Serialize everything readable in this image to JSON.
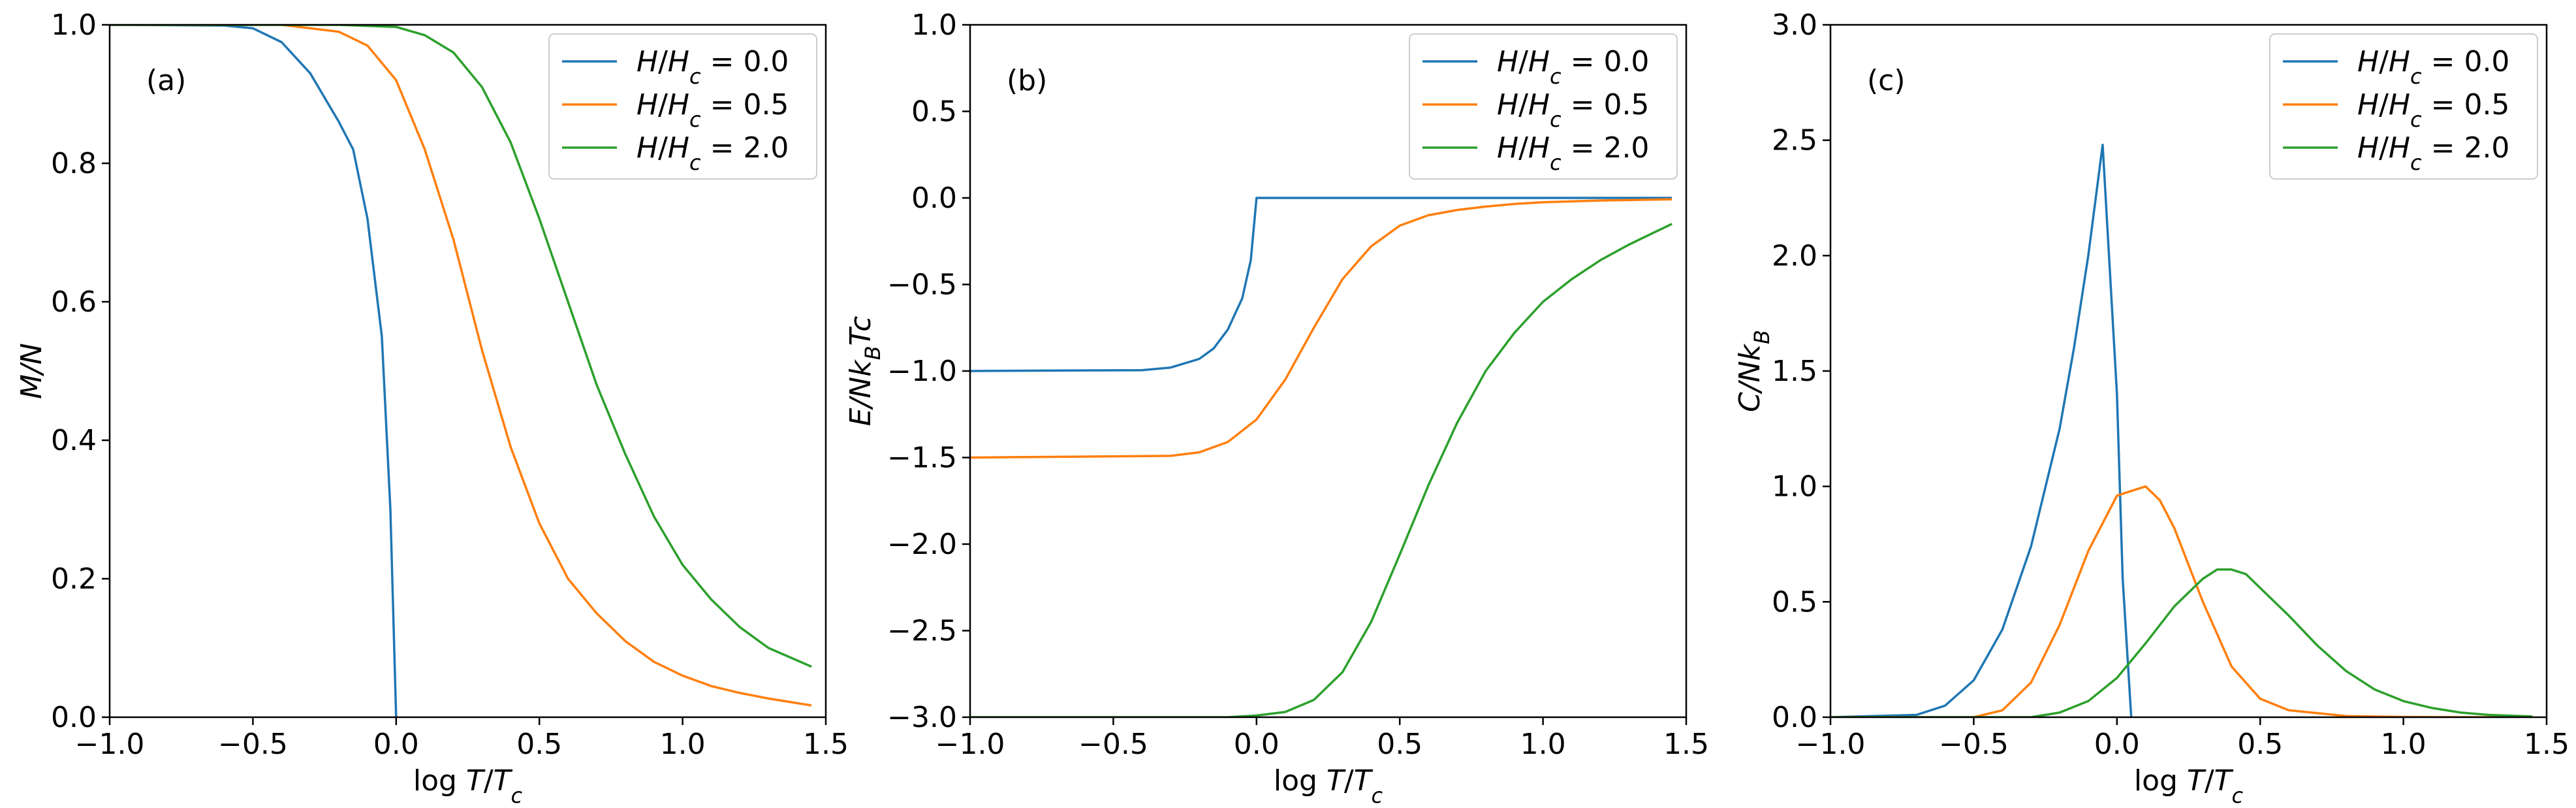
{
  "figure": {
    "panels": [
      "(a)",
      "(b)",
      "(c)"
    ]
  },
  "colors": {
    "series0": "#1f77b4",
    "series1": "#ff7f0e",
    "series2": "#2ca02c",
    "axes": "#000000",
    "background": "#ffffff"
  },
  "chart_data": [
    {
      "type": "line",
      "panel_label": "(a)",
      "xlabel": "log T/T_c",
      "ylabel": "M/N",
      "xlim": [
        -1.0,
        1.5
      ],
      "ylim": [
        0.0,
        1.0
      ],
      "xticks": [
        -1.0,
        -0.5,
        0.0,
        0.5,
        1.0,
        1.5
      ],
      "xtick_labels": [
        "−1.0",
        "−0.5",
        "0.0",
        "0.5",
        "1.0",
        "1.5"
      ],
      "yticks": [
        0.0,
        0.2,
        0.4,
        0.6,
        0.8,
        1.0
      ],
      "ytick_labels": [
        "0.0",
        "0.2",
        "0.4",
        "0.6",
        "0.8",
        "1.0"
      ],
      "grid": false,
      "legend_position": "top-right",
      "series": [
        {
          "name": "H/H_c = 0.0",
          "x": [
            -1.0,
            -0.6,
            -0.5,
            -0.4,
            -0.3,
            -0.2,
            -0.15,
            -0.1,
            -0.05,
            -0.02,
            0.0
          ],
          "y": [
            1.0,
            0.999,
            0.995,
            0.975,
            0.93,
            0.86,
            0.82,
            0.72,
            0.55,
            0.3,
            0.0
          ]
        },
        {
          "name": "H/H_c = 0.5",
          "x": [
            -1.0,
            -0.4,
            -0.2,
            -0.1,
            0.0,
            0.1,
            0.2,
            0.3,
            0.4,
            0.5,
            0.6,
            0.7,
            0.8,
            0.9,
            1.0,
            1.1,
            1.2,
            1.3,
            1.45
          ],
          "y": [
            1.0,
            1.0,
            0.99,
            0.97,
            0.92,
            0.82,
            0.69,
            0.53,
            0.39,
            0.28,
            0.2,
            0.15,
            0.11,
            0.08,
            0.06,
            0.045,
            0.035,
            0.027,
            0.017
          ]
        },
        {
          "name": "H/H_c = 2.0",
          "x": [
            -1.0,
            -0.2,
            0.0,
            0.1,
            0.2,
            0.3,
            0.4,
            0.5,
            0.6,
            0.7,
            0.8,
            0.9,
            1.0,
            1.1,
            1.2,
            1.3,
            1.45
          ],
          "y": [
            1.0,
            1.0,
            0.997,
            0.985,
            0.96,
            0.91,
            0.83,
            0.72,
            0.6,
            0.48,
            0.38,
            0.29,
            0.22,
            0.17,
            0.13,
            0.1,
            0.073
          ]
        }
      ]
    },
    {
      "type": "line",
      "panel_label": "(b)",
      "xlabel": "log T/T_c",
      "ylabel": "E/Nk_BTc",
      "xlim": [
        -1.0,
        1.5
      ],
      "ylim": [
        -3.0,
        1.0
      ],
      "xticks": [
        -1.0,
        -0.5,
        0.0,
        0.5,
        1.0,
        1.5
      ],
      "xtick_labels": [
        "−1.0",
        "−0.5",
        "0.0",
        "0.5",
        "1.0",
        "1.5"
      ],
      "yticks": [
        -3.0,
        -2.5,
        -2.0,
        -1.5,
        -1.0,
        -0.5,
        0.0,
        0.5,
        1.0
      ],
      "ytick_labels": [
        "−3.0",
        "−2.5",
        "−2.0",
        "−1.5",
        "−1.0",
        "−0.5",
        "0.0",
        "0.5",
        "1.0"
      ],
      "grid": false,
      "legend_position": "top-right",
      "series": [
        {
          "name": "H/H_c = 0.0",
          "x": [
            -1.0,
            -0.4,
            -0.3,
            -0.2,
            -0.15,
            -0.1,
            -0.05,
            -0.02,
            0.0,
            1.45
          ],
          "y": [
            -1.0,
            -0.995,
            -0.98,
            -0.93,
            -0.87,
            -0.76,
            -0.58,
            -0.36,
            0.0,
            0.0
          ]
        },
        {
          "name": "H/H_c = 0.5",
          "x": [
            -1.0,
            -0.3,
            -0.2,
            -0.1,
            0.0,
            0.1,
            0.2,
            0.3,
            0.4,
            0.5,
            0.6,
            0.7,
            0.8,
            0.9,
            1.0,
            1.2,
            1.45
          ],
          "y": [
            -1.5,
            -1.49,
            -1.47,
            -1.41,
            -1.28,
            -1.05,
            -0.75,
            -0.47,
            -0.28,
            -0.16,
            -0.1,
            -0.07,
            -0.05,
            -0.035,
            -0.025,
            -0.015,
            -0.008
          ]
        },
        {
          "name": "H/H_c = 2.0",
          "x": [
            -1.0,
            -0.1,
            0.0,
            0.1,
            0.2,
            0.3,
            0.4,
            0.5,
            0.6,
            0.7,
            0.8,
            0.9,
            1.0,
            1.1,
            1.2,
            1.3,
            1.45
          ],
          "y": [
            -3.0,
            -3.0,
            -2.99,
            -2.97,
            -2.9,
            -2.74,
            -2.45,
            -2.06,
            -1.66,
            -1.3,
            -1.0,
            -0.78,
            -0.6,
            -0.47,
            -0.36,
            -0.27,
            -0.15
          ]
        }
      ]
    },
    {
      "type": "line",
      "panel_label": "(c)",
      "xlabel": "log T/T_c",
      "ylabel": "C/Nk_B",
      "xlim": [
        -1.0,
        1.5
      ],
      "ylim": [
        0.0,
        3.0
      ],
      "xticks": [
        -1.0,
        -0.5,
        0.0,
        0.5,
        1.0,
        1.5
      ],
      "xtick_labels": [
        "−1.0",
        "−0.5",
        "0.0",
        "0.5",
        "1.0",
        "1.5"
      ],
      "yticks": [
        0.0,
        0.5,
        1.0,
        1.5,
        2.0,
        2.5,
        3.0
      ],
      "ytick_labels": [
        "0.0",
        "0.5",
        "1.0",
        "1.5",
        "2.0",
        "2.5",
        "3.0"
      ],
      "grid": false,
      "legend_position": "top-right",
      "series": [
        {
          "name": "H/H_c = 0.0",
          "x": [
            -1.0,
            -0.7,
            -0.6,
            -0.5,
            -0.4,
            -0.3,
            -0.2,
            -0.15,
            -0.1,
            -0.05,
            0.0,
            0.02,
            0.05
          ],
          "y": [
            0.0,
            0.01,
            0.05,
            0.16,
            0.38,
            0.74,
            1.25,
            1.6,
            2.0,
            2.48,
            1.4,
            0.6,
            0.0
          ]
        },
        {
          "name": "H/H_c = 0.5",
          "x": [
            -1.0,
            -0.5,
            -0.4,
            -0.3,
            -0.2,
            -0.1,
            0.0,
            0.05,
            0.1,
            0.15,
            0.2,
            0.3,
            0.4,
            0.5,
            0.6,
            0.8,
            1.0,
            1.2,
            1.45
          ],
          "y": [
            0.0,
            0.0,
            0.03,
            0.15,
            0.4,
            0.72,
            0.96,
            0.98,
            1.0,
            0.94,
            0.82,
            0.5,
            0.22,
            0.08,
            0.03,
            0.005,
            0.001,
            0.0,
            0.0
          ]
        },
        {
          "name": "H/H_c = 2.0",
          "x": [
            -1.0,
            -0.3,
            -0.2,
            -0.1,
            0.0,
            0.1,
            0.2,
            0.3,
            0.35,
            0.4,
            0.45,
            0.5,
            0.6,
            0.7,
            0.8,
            0.9,
            1.0,
            1.1,
            1.2,
            1.3,
            1.45
          ],
          "y": [
            0.0,
            0.0,
            0.02,
            0.07,
            0.17,
            0.32,
            0.48,
            0.6,
            0.64,
            0.64,
            0.62,
            0.56,
            0.44,
            0.31,
            0.2,
            0.12,
            0.07,
            0.04,
            0.02,
            0.01,
            0.003
          ]
        }
      ]
    }
  ]
}
